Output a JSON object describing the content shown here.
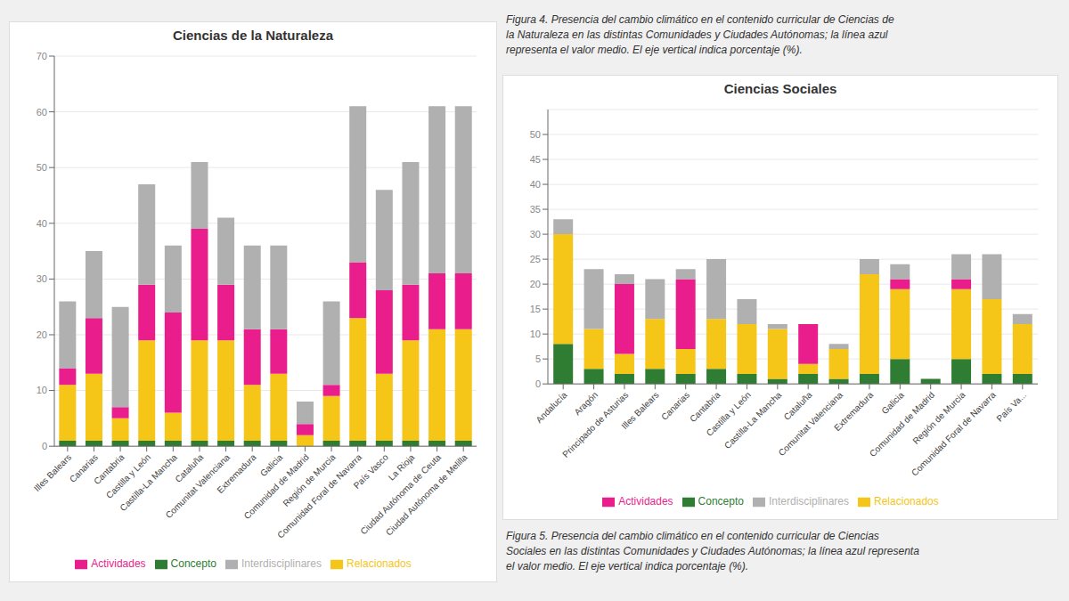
{
  "chart_data": [
    {
      "type": "bar",
      "title": "Ciencias de la Naturaleza",
      "annotations": [
        "Figura 4. Presencia del cambio climático en el contenido curricular de Ciencias de\nla Naturaleza en las distintas Comunidades y Ciudades Autónomas; la línea azul\nrepresenta el valor medio. El eje vertical indica porcentaje (%)."
      ],
      "categories": [
        "Illes Balears",
        "Canarias",
        "Cantabria",
        "Castilla y León",
        "Castilla-La Mancha",
        "Cataluña",
        "Comunitat Valenciana",
        "Extremadura",
        "Galicia",
        "Comunidad de Madrid",
        "Región de Murcia",
        "Comunidad Foral de Navarra",
        "País Vasco",
        "La Rioja",
        "Ciudad Autónoma de Ceuta",
        "Ciudad Autónoma de Melilla"
      ],
      "series": [
        {
          "name": "Concepto",
          "color": "#2e7d32",
          "values": [
            1,
            1,
            1,
            1,
            1,
            1,
            1,
            1,
            1,
            0,
            1,
            1,
            1,
            1,
            1,
            1
          ]
        },
        {
          "name": "Relacionados",
          "color": "#f5c518",
          "values": [
            10,
            12,
            4,
            18,
            5,
            18,
            18,
            10,
            12,
            2,
            8,
            22,
            12,
            18,
            20,
            20
          ]
        },
        {
          "name": "Actividades",
          "color": "#e91e8c",
          "values": [
            3,
            10,
            2,
            10,
            18,
            20,
            10,
            10,
            8,
            2,
            2,
            10,
            15,
            10,
            10,
            10
          ]
        },
        {
          "name": "Interdisciplinares",
          "color": "#b0b0b0",
          "values": [
            12,
            12,
            18,
            18,
            12,
            12,
            12,
            15,
            15,
            4,
            15,
            28,
            18,
            22,
            30,
            30
          ]
        }
      ],
      "ylim": [
        0,
        70
      ],
      "yticks": [
        0,
        10,
        20,
        30,
        40,
        50,
        60,
        70
      ],
      "stacked": true,
      "grid": true,
      "legend": "bottom"
    },
    {
      "type": "bar",
      "title": "Ciencias Sociales",
      "annotations": [
        "Figura 5. Presencia del cambio climático en el contenido curricular de Ciencias\nSociales en las distintas Comunidades y Ciudades Autónomas; la línea azul representa\nel valor medio. El eje vertical indica porcentaje (%)."
      ],
      "categories": [
        "Andalucía",
        "Aragón",
        "Principado de Asturias",
        "Illes Balears",
        "Canarias",
        "Cantabria",
        "Castilla y León",
        "Castilla-La Mancha",
        "Cataluña",
        "Comunitat Valenciana",
        "Extremadura",
        "Galicia",
        "Comunidad de Madrid",
        "Región de Murcia",
        "Comunidad Foral de Navarra",
        "País Va..."
      ],
      "series": [
        {
          "name": "Concepto",
          "color": "#2e7d32",
          "values": [
            8,
            3,
            2,
            3,
            2,
            3,
            2,
            1,
            2,
            1,
            2,
            5,
            1,
            5,
            2,
            2
          ]
        },
        {
          "name": "Relacionados",
          "color": "#f5c518",
          "values": [
            22,
            8,
            4,
            10,
            5,
            10,
            10,
            10,
            2,
            6,
            20,
            14,
            0,
            14,
            15,
            10
          ]
        },
        {
          "name": "Actividades",
          "color": "#e91e8c",
          "values": [
            0,
            0,
            14,
            0,
            14,
            0,
            0,
            0,
            8,
            0,
            0,
            2,
            0,
            2,
            0,
            0
          ]
        },
        {
          "name": "Interdisciplinares",
          "color": "#b0b0b0",
          "values": [
            3,
            12,
            2,
            8,
            2,
            12,
            5,
            1,
            0,
            1,
            3,
            3,
            0,
            5,
            9,
            2
          ]
        }
      ],
      "ylim": [
        0,
        55
      ],
      "yticks": [
        0,
        5,
        10,
        15,
        20,
        25,
        30,
        35,
        40,
        45,
        50
      ],
      "stacked": true,
      "grid": true,
      "legend": "bottom"
    }
  ]
}
